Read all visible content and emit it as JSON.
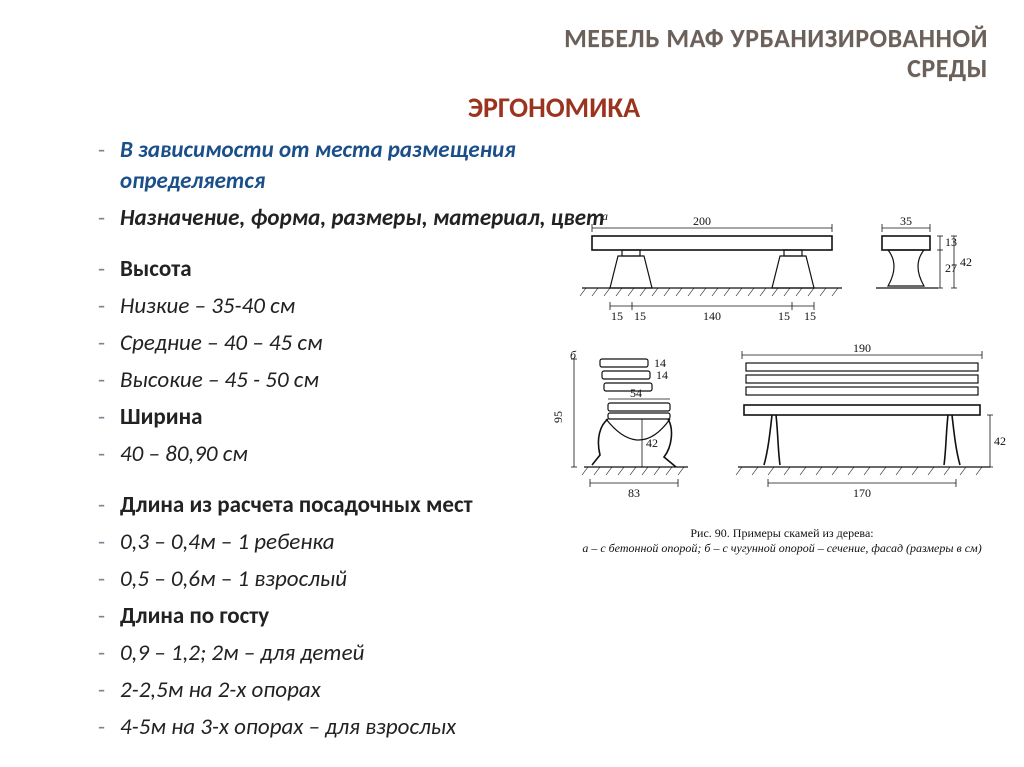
{
  "title_line1": "МЕБЕЛЬ МАФ УРБАНИЗИРОВАННОЙ",
  "title_line2": "СРЕДЫ",
  "subtitle": "ЭРГОНОМИКА",
  "bullets": [
    {
      "text": "В зависимости от места размещения определяется",
      "cls": "b-blue"
    },
    {
      "text": "Назначение, форма, размеры, материал, цвет",
      "cls": "b-black-bi"
    },
    {
      "text": "Высота",
      "cls": "b-black-b"
    },
    {
      "text": "Низкие – 35-40 см",
      "cls": "b-black-i"
    },
    {
      "text": "Средние – 40 – 45 см",
      "cls": "b-black-i"
    },
    {
      "text": "Высокие – 45 - 50 см",
      "cls": "b-black-i"
    },
    {
      "text": "Ширина",
      "cls": "b-black-b"
    },
    {
      "text": "40 – 80,90 см",
      "cls": "b-black-i"
    },
    {
      "text": "Длина из расчета посадочных мест",
      "cls": "b-black-b"
    },
    {
      "text": "0,3 – 0,4м – 1 ребенка",
      "cls": "b-black-i"
    },
    {
      "text": "0,5 – 0,6м – 1 взрослый",
      "cls": "b-black-i"
    },
    {
      "text": "Длина по госту",
      "cls": "b-black-b"
    },
    {
      "text": "0,9 – 1,2; 2м – для детей",
      "cls": "b-black-i"
    },
    {
      "text": "2-2,5м на 2-х опорах",
      "cls": "b-black-i"
    },
    {
      "text": "4-5м на 3-х опорах – для взрослых",
      "cls": "b-black-i"
    }
  ],
  "spacer_after": [
    1,
    7
  ],
  "fig_a": {
    "label": "а",
    "front": {
      "length": "200",
      "leg_gap": "140",
      "leg_w": "15",
      "foot_w": "15"
    },
    "side": {
      "width": "35",
      "seat_th": "13",
      "leg_h": "27",
      "total_h": "42"
    }
  },
  "fig_b": {
    "label": "б",
    "side": {
      "overall_w": "83",
      "seat_depth": "54",
      "slat": "14",
      "slat2": "14",
      "back_h": "95",
      "seat_h": "42"
    },
    "front": {
      "length": "190",
      "leg_gap": "170",
      "seat_h": "42"
    }
  },
  "caption_title": "Рис. 90. Примеры скамей из дерева:",
  "caption_sub": "а – с бетонной опорой; б – с чугунной опорой – сечение, фасад (размеры в см)",
  "colors": {
    "title": "#6b605a",
    "subtitle": "#9a341f",
    "blue": "#1a4f8a",
    "bullet_dash": "#7b8595",
    "line": "#111111",
    "bg": "#ffffff"
  },
  "typography": {
    "title_fontsize": 26,
    "subtitle_fontsize": 28,
    "bullet_fontsize": 23,
    "diagram_fontsize": 12
  }
}
